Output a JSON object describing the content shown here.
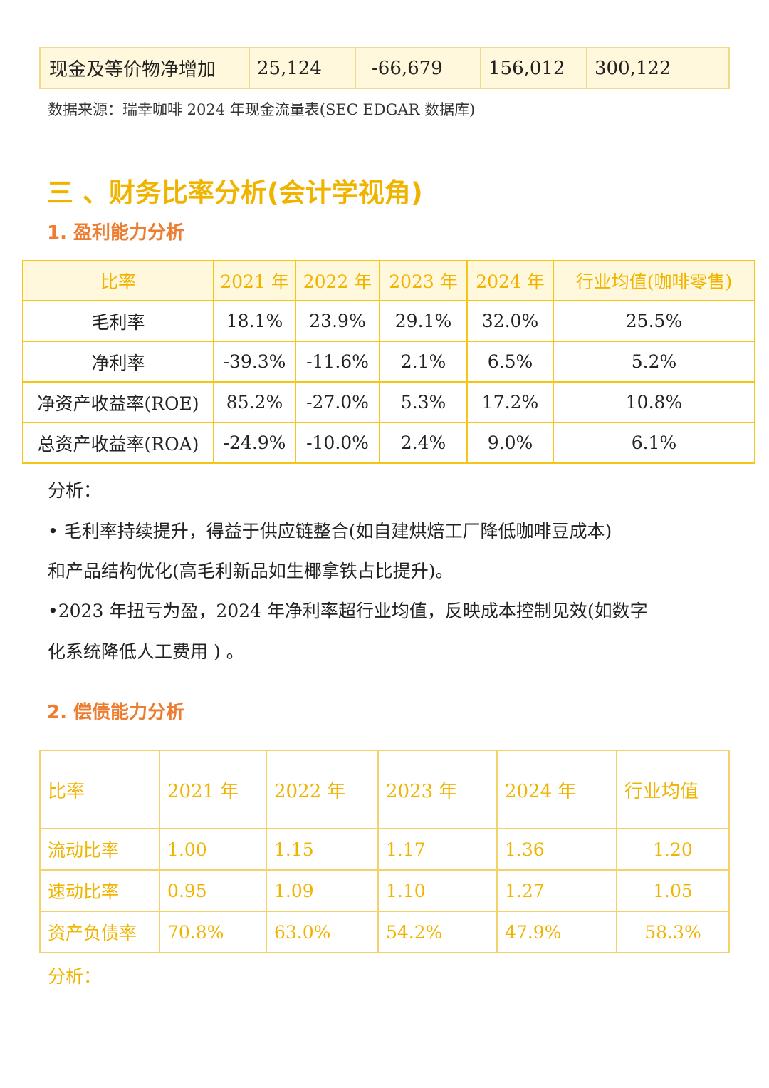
{
  "cash_row": {
    "label": "现金及等价物净增加",
    "values": [
      "25,124",
      "-66,679",
      "156,012",
      "300,122"
    ]
  },
  "source_note": "数据来源：瑞幸咖啡 2024 年现金流量表(SEC EDGAR 数据库)",
  "section3_title": "三 、财务比率分析(会计学视角)",
  "profitability": {
    "title": "1. 盈利能力分析",
    "headers": [
      "比率",
      "2021 年",
      "2022 年",
      "2023 年",
      "2024 年",
      "行业均值(咖啡零售)"
    ],
    "rows": [
      [
        "毛利率",
        "18.1%",
        "23.9%",
        "29.1%",
        "32.0%",
        "25.5%"
      ],
      [
        "净利率",
        "-39.3%",
        "-11.6%",
        "2.1%",
        "6.5%",
        "5.2%"
      ],
      [
        "净资产收益率(ROE)",
        "85.2%",
        "-27.0%",
        "5.3%",
        "17.2%",
        "10.8%"
      ],
      [
        "总资产收益率(ROA)",
        "-24.9%",
        "-10.0%",
        "2.4%",
        "9.0%",
        "6.1%"
      ]
    ],
    "analysis_label": "分析：",
    "analysis_lines": [
      "• 毛利率持续提升，得益于供应链整合(如自建烘焙工厂降低咖啡豆成本)",
      "和产品结构优化(高毛利新品如生椰拿铁占比提升)。",
      "•2023 年扭亏为盈，2024 年净利率超行业均值，反映成本控制见效(如数字",
      "化系统降低人工费用 ) 。"
    ]
  },
  "solvency": {
    "title": "2. 偿债能力分析",
    "headers": [
      "比率",
      "2021 年",
      "2022 年",
      "2023 年",
      "2024 年",
      "行业均值"
    ],
    "rows": [
      [
        "流动比率",
        "1.00",
        "1.15",
        "1.17",
        "1.36",
        "1.20"
      ],
      [
        "速动比率",
        "0.95",
        "1.09",
        "1.10",
        "1.27",
        "1.05"
      ],
      [
        "资产负债率",
        "70.8%",
        "63.0%",
        "54.2%",
        "47.9%",
        "58.3%"
      ]
    ],
    "analysis_label": "分析："
  }
}
